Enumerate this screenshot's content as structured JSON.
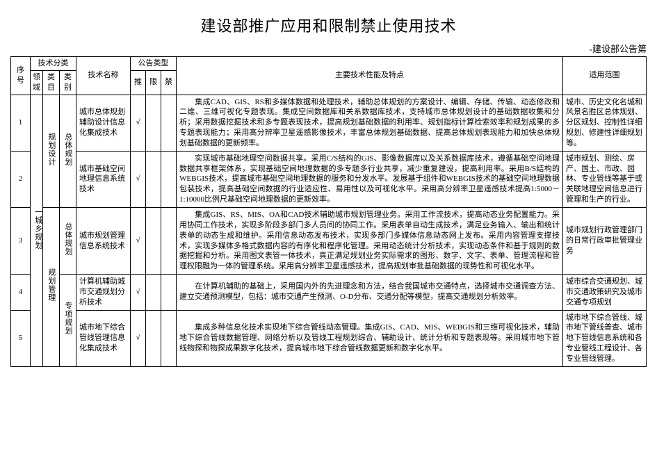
{
  "title": "建设部推广应用和限制禁止使用技术",
  "subtitle": "-建设部公告第",
  "headers": {
    "seq": "序号",
    "tech_class": "技术分类",
    "field": "领域",
    "category": "类目",
    "type": "类别",
    "tech_name": "技术名称",
    "pub_type": "公告类型",
    "promote": "推",
    "limit": "限",
    "ban": "禁",
    "features": "主要技术性能及特点",
    "scope": "适用范围"
  },
  "field_label": "一城乡规划",
  "cat1": "规划设计",
  "cat2": "规划管理",
  "type_overall": "总体规划",
  "type_special": "专项规划",
  "rows": [
    {
      "seq": "1",
      "tech": "城市总体规划辅助设计信息化集成技术",
      "p": "√",
      "feat": "　　集成CAD、GIS、RS和多媒体数据和处理技术，辅助总体规划的方案设计、编辑、存储、传输、动态修改和二维、三维可视化专题表现。集成空间数据库和关系数据库技术，支持城市总体规划设计的基础数据收集和分析；采用数据挖掘技术和多专题表现技术，提高规划基础数据的利用率、规划指标计算检索效率和规划成果的多专题表现能力；采用高分辨率卫星遥感影像技术，丰富总体规划基础数据、提高总体规划表现能力和加快总体规划基础数据的更新频率。",
      "scope": "城市、历史文化名城和风景名胜区总体规划、分区规划、控制性详细规划、修建性详细规划等。"
    },
    {
      "seq": "2",
      "tech": "城市基础空间地理信息系统技术",
      "p": "√",
      "feat": "　　实现城市基础地理空间数据共享。采用C/S结构的GIS、影像数据库以及关系数据库技术，遵循基础空间地理数据共享框架体系，实现基础空间地理数据的多专题多行业共享，减少重复建设，提高利用率。采用B/S结构的WEBGIS技术，提高城市基础空间地理数据的服务和分发水平。发展基于组件和WEBGIS技术的基础空间地理数据包装技术，提高基础空间数据的行业适应性、易用性以及可视化水平。采用高分辨率卫星遥感技术提高1:5000－1:10000比例尺基础空间地理数据的更新效率。",
      "scope": "城市规划、测绘、房产、国土、市政、园林、专业管线等基于或关联地理空间信息进行管理和生产的行业。"
    },
    {
      "seq": "3",
      "tech": "城市规划管理信息系统技术",
      "p": "√",
      "feat": "　　集成GIS、RS、MIS、OA和CAD技术辅助城市规划管理业务。采用工作流技术，提高动态业务配置能力。采用协同工作技术，实现多阶段多部门多人员间的协同工作。采用表单自动生成技术，满足业务输入、输出和统计表单的动态生成和维护。采用信息动态发布技术，实现多部门多媒体信息动态网上发布。采用内容管理支撑技术，实现多媒体多格式数据内容的有序化和程序化管理。采用动态统计分析技术，实现动态条件和基于规则的数据挖掘和分析。采用图文表管一体技术，真正满足规划业务实际需求的图形、数字、文字、表单、管理流程和管理权限融为一体的管理系统。采用高分辨率卫星遥感技术，提高规划审批基础数据的现势性和可视化水平。",
      "scope": "城市规划行政管理部门的日常行政审批管理业务"
    },
    {
      "seq": "4",
      "tech": "计算机辅助城市交通规划分析技术",
      "p": "√",
      "feat": "　　在计算机辅助的基础上，采用国内外的先进理念和方法，结合我国城市交通特点，选择城市交通调查方法、建立交通预测模型，包括：城市交通产生预测、O-D分布、交通分配等模型，提高交通规划分析效率。",
      "scope": "城市综合交通规划、城市交通政策研究及城市交通专项规划"
    },
    {
      "seq": "5",
      "tech": "城市地下综合管线管理信息化集成技术",
      "p": "√",
      "feat": "　　集成多种信息化技术实现地下综合管线动态管理。集成GIS、CAD、MIS、WEBGIS和三维可视化技术，辅助地下综合管线数据管理、网络分析以及管线工程规划综合、辅助设计、统计分析和专题表现等。采用城市地下管线物探和物探成果数字化技术，提高城市地下综合管线数据更新和数字化水平。",
      "scope": "城市地下综合管线、城市地下管线普查、城市地下管线信息系统和各专业管线工程设计、各专业管线管理。"
    }
  ]
}
